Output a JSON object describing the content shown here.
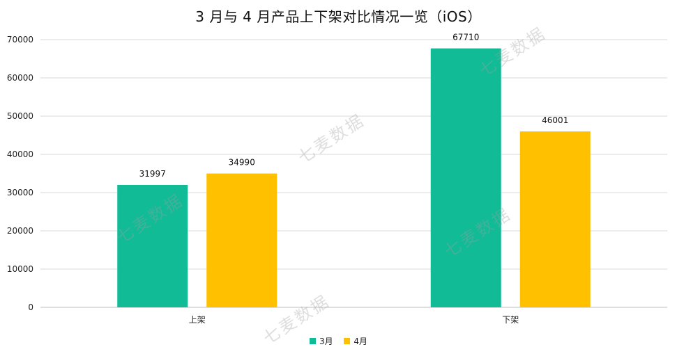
{
  "watermark_text": "七麦数据",
  "chart_data": {
    "type": "bar",
    "title": "3 月与 4 月产品上下架对比情况一览（iOS）",
    "xlabel": "",
    "ylabel": "",
    "categories": [
      "上架",
      "下架"
    ],
    "series": [
      {
        "name": "3月",
        "values": [
          31997,
          67710
        ],
        "color": "#10BB96"
      },
      {
        "name": "4月",
        "values": [
          34990,
          46001
        ],
        "color": "#FFC000"
      }
    ],
    "ylim": [
      0,
      70000
    ],
    "yticks": [
      "0",
      "10000",
      "20000",
      "30000",
      "40000",
      "50000",
      "60000",
      "70000"
    ],
    "grid": true,
    "legend_position": "bottom",
    "data_labels": true
  }
}
